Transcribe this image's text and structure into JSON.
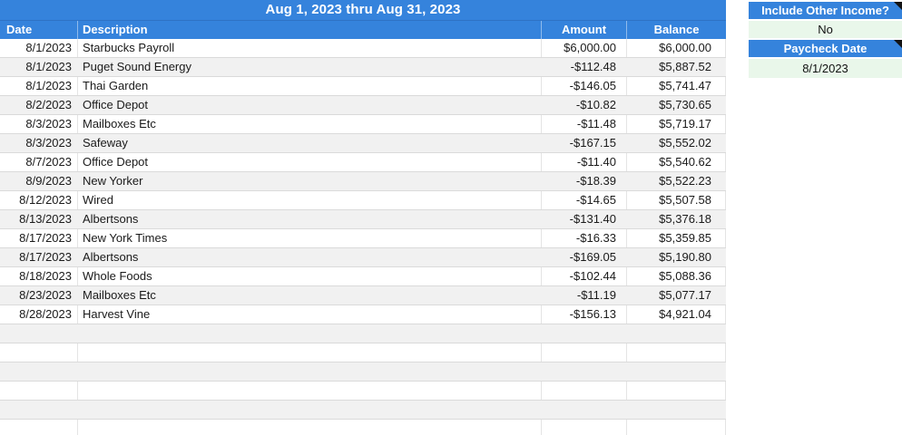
{
  "title_bar": {
    "text": "Aug 1, 2023 thru Aug 31, 2023"
  },
  "table": {
    "columns": [
      "Date",
      "Description",
      "Amount",
      "Balance"
    ],
    "rows": [
      {
        "date": "8/1/2023",
        "description": "Starbucks Payroll",
        "amount": "$6,000.00",
        "balance": "$6,000.00"
      },
      {
        "date": "8/1/2023",
        "description": "Puget Sound Energy",
        "amount": "-$112.48",
        "balance": "$5,887.52"
      },
      {
        "date": "8/1/2023",
        "description": "Thai Garden",
        "amount": "-$146.05",
        "balance": "$5,741.47"
      },
      {
        "date": "8/2/2023",
        "description": "Office Depot",
        "amount": "-$10.82",
        "balance": "$5,730.65"
      },
      {
        "date": "8/3/2023",
        "description": "Mailboxes Etc",
        "amount": "-$11.48",
        "balance": "$5,719.17"
      },
      {
        "date": "8/3/2023",
        "description": "Safeway",
        "amount": "-$167.15",
        "balance": "$5,552.02"
      },
      {
        "date": "8/7/2023",
        "description": "Office Depot",
        "amount": "-$11.40",
        "balance": "$5,540.62"
      },
      {
        "date": "8/9/2023",
        "description": "New Yorker",
        "amount": "-$18.39",
        "balance": "$5,522.23"
      },
      {
        "date": "8/12/2023",
        "description": "Wired",
        "amount": "-$14.65",
        "balance": "$5,507.58"
      },
      {
        "date": "8/13/2023",
        "description": "Albertsons",
        "amount": "-$131.40",
        "balance": "$5,376.18"
      },
      {
        "date": "8/17/2023",
        "description": "New York Times",
        "amount": "-$16.33",
        "balance": "$5,359.85"
      },
      {
        "date": "8/17/2023",
        "description": "Albertsons",
        "amount": "-$169.05",
        "balance": "$5,190.80"
      },
      {
        "date": "8/18/2023",
        "description": "Whole Foods",
        "amount": "-$102.44",
        "balance": "$5,088.36"
      },
      {
        "date": "8/23/2023",
        "description": "Mailboxes Etc",
        "amount": "-$11.19",
        "balance": "$5,077.17"
      },
      {
        "date": "8/28/2023",
        "description": "Harvest Vine",
        "amount": "-$156.13",
        "balance": "$4,921.04"
      }
    ],
    "empty_row_count": 6
  },
  "side_panel": {
    "include_other_income_label": "Include Other Income?",
    "include_other_income_value": "No",
    "paycheck_date_label": "Paycheck Date",
    "paycheck_date_value": "8/1/2023"
  },
  "colors": {
    "header_blue": "#3583DC",
    "stripe_gray": "#f1f1f1",
    "value_green": "#e9f7ea",
    "gridline": "#dadada",
    "note_marker_black": "#131313"
  }
}
